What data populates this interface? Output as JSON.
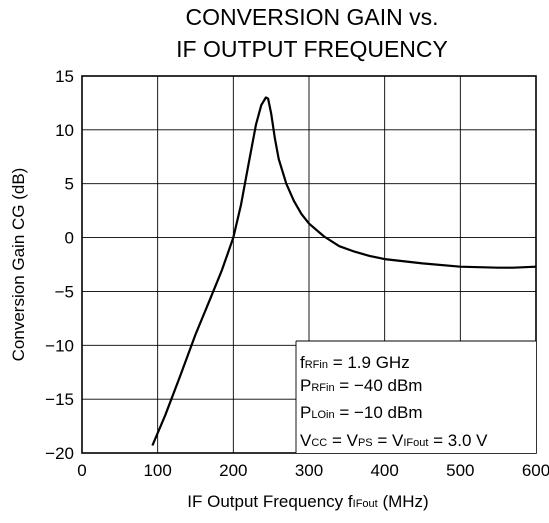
{
  "chart_data": {
    "type": "line",
    "title_lines": [
      "CONVERSION GAIN vs.",
      "IF OUTPUT FREQUENCY"
    ],
    "xlabel": {
      "text": "IF Output Frequency  ",
      "symbol": "f",
      "sub": "IFout",
      "unit": " (MHz)"
    },
    "ylabel": "Conversion Gain  CG (dB)",
    "xlim": [
      0,
      600
    ],
    "ylim": [
      -20,
      15
    ],
    "xticks": [
      0,
      100,
      200,
      300,
      400,
      500,
      600
    ],
    "yticks": [
      15,
      10,
      5,
      0,
      -5,
      -10,
      -15,
      -20
    ],
    "xtick_labels": [
      "0",
      "100",
      "200",
      "300",
      "400",
      "500",
      "600"
    ],
    "ytick_labels": [
      "15",
      "10",
      "5",
      "0",
      "−5",
      "−10",
      "−15",
      "−20"
    ],
    "grid": true,
    "series": [
      {
        "x": [
          93,
          110,
          130,
          150,
          170,
          185,
          200,
          210,
          220,
          230,
          237,
          243,
          246,
          250,
          255,
          260,
          270,
          280,
          290,
          300,
          320,
          340,
          360,
          380,
          400,
          450,
          500,
          550,
          570,
          600
        ],
        "y": [
          -19.3,
          -16.5,
          -12.8,
          -9.0,
          -5.6,
          -3.0,
          0.0,
          3.0,
          6.8,
          10.5,
          12.3,
          13.0,
          12.9,
          11.5,
          9.2,
          7.3,
          5.0,
          3.4,
          2.2,
          1.3,
          0.1,
          -0.8,
          -1.3,
          -1.7,
          -2.0,
          -2.4,
          -2.7,
          -2.8,
          -2.8,
          -2.7
        ]
      }
    ],
    "annotations": [
      {
        "parts": [
          {
            "t": "f",
            "sub": false
          },
          {
            "t": "RFin",
            "sub": true
          },
          {
            "t": " = 1.9 GHz",
            "sub": false
          }
        ]
      },
      {
        "parts": [
          {
            "t": "P",
            "sub": false
          },
          {
            "t": "RFin",
            "sub": true
          },
          {
            "t": " = −40 dBm",
            "sub": false
          }
        ]
      },
      {
        "parts": [
          {
            "t": "P",
            "sub": false
          },
          {
            "t": "LOin",
            "sub": true
          },
          {
            "t": " = −10 dBm",
            "sub": false
          }
        ]
      },
      {
        "parts": [
          {
            "t": "V",
            "sub": false
          },
          {
            "t": "CC",
            "sub": true
          },
          {
            "t": " = V",
            "sub": false
          },
          {
            "t": "PS",
            "sub": true
          },
          {
            "t": " = V",
            "sub": false
          },
          {
            "t": "IFout",
            "sub": true
          },
          {
            "t": " = 3.0 V",
            "sub": false
          }
        ]
      }
    ],
    "line_color": "#000000",
    "grid_color": "#000000"
  }
}
